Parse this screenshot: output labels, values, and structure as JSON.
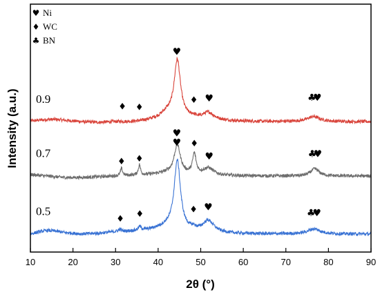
{
  "chart_data": {
    "type": "line",
    "xlabel": "2θ (°)",
    "ylabel": "Intensity (a.u.)",
    "xlim": [
      10,
      90
    ],
    "xticks": [
      10,
      20,
      30,
      40,
      50,
      60,
      70,
      80,
      90
    ],
    "y_ticks_shown": false,
    "legend": {
      "placement": "top-left",
      "entries": [
        {
          "symbol": "♥",
          "symbol_name": "heart-symbol",
          "label": "Ni"
        },
        {
          "symbol": "♦",
          "symbol_name": "diamond-symbol",
          "label": "WC"
        },
        {
          "symbol": "♣",
          "symbol_name": "club-symbol",
          "label": "BN"
        }
      ]
    },
    "series": [
      {
        "name": "0.9",
        "color": "#d9453c",
        "baseline": 1.55,
        "background_points": [
          [
            10,
            0.01
          ],
          [
            12,
            0.02
          ],
          [
            14,
            0.03
          ],
          [
            16,
            0.03
          ],
          [
            18,
            0.02
          ],
          [
            22,
            0.0
          ],
          [
            26,
            -0.01
          ],
          [
            30,
            0.0
          ],
          [
            34,
            0.0
          ],
          [
            36,
            0.01
          ],
          [
            38,
            0.03
          ],
          [
            40,
            0.06
          ],
          [
            42,
            0.12
          ]
        ],
        "peaks": [
          {
            "x": 44.5,
            "height": 0.78,
            "width": 0.9,
            "marker": "♥"
          },
          {
            "x": 51.8,
            "height": 0.1,
            "width": 1.6,
            "marker": "♥"
          },
          {
            "x": 48.3,
            "height": 0.02,
            "width": 0.4,
            "marker": "♦"
          },
          {
            "x": 76.5,
            "height": 0.07,
            "width": 1.8,
            "marker": "♥"
          },
          {
            "x": 31.5,
            "height": 0.0,
            "width": 0.3,
            "marker": "♦"
          },
          {
            "x": 35.6,
            "height": 0.0,
            "width": 0.3,
            "marker": "♦"
          }
        ],
        "markers": [
          {
            "symbol": "♦",
            "x": 31.6,
            "y": 1.72
          },
          {
            "symbol": "♦",
            "x": 35.6,
            "y": 1.71
          },
          {
            "symbol": "♥",
            "x": 44.4,
            "y": 2.47
          },
          {
            "symbol": "♦",
            "x": 48.4,
            "y": 1.81
          },
          {
            "symbol": "♥",
            "x": 52.0,
            "y": 1.83
          },
          {
            "symbol": "♣",
            "x": 76.1,
            "y": 1.84
          },
          {
            "symbol": "♥",
            "x": 77.4,
            "y": 1.84
          }
        ]
      },
      {
        "name": "0.7",
        "color": "#6d6d6d",
        "baseline": 0.8,
        "background_points": [
          [
            10,
            0.02
          ],
          [
            12,
            0.01
          ],
          [
            14,
            0.0
          ],
          [
            18,
            -0.02
          ],
          [
            22,
            -0.02
          ],
          [
            26,
            -0.01
          ],
          [
            30,
            0.0
          ],
          [
            34,
            0.01
          ],
          [
            38,
            0.02
          ],
          [
            42,
            0.04
          ]
        ],
        "peaks": [
          {
            "x": 44.5,
            "height": 0.4,
            "width": 0.9,
            "marker": "♥"
          },
          {
            "x": 48.5,
            "height": 0.28,
            "width": 0.5,
            "marker": "♦"
          },
          {
            "x": 51.8,
            "height": 0.1,
            "width": 1.5,
            "marker": "♥"
          },
          {
            "x": 31.4,
            "height": 0.1,
            "width": 0.3,
            "marker": "♦"
          },
          {
            "x": 35.6,
            "height": 0.14,
            "width": 0.3,
            "marker": "♦"
          },
          {
            "x": 76.8,
            "height": 0.1,
            "width": 1.2,
            "marker": "♥"
          }
        ],
        "markers": [
          {
            "symbol": "♦",
            "x": 31.4,
            "y": 0.96
          },
          {
            "symbol": "♦",
            "x": 35.6,
            "y": 1.0
          },
          {
            "symbol": "♥",
            "x": 44.4,
            "y": 1.35
          },
          {
            "symbol": "♦",
            "x": 48.5,
            "y": 1.21
          },
          {
            "symbol": "♥",
            "x": 52.0,
            "y": 1.03
          },
          {
            "symbol": "♣",
            "x": 76.2,
            "y": 1.06
          },
          {
            "symbol": "♥",
            "x": 77.5,
            "y": 1.06
          }
        ]
      },
      {
        "name": "0.5",
        "color": "#3a73d4",
        "baseline": 0.0,
        "background_points": [
          [
            10,
            0.0
          ],
          [
            12,
            0.03
          ],
          [
            14,
            0.05
          ],
          [
            16,
            0.04
          ],
          [
            18,
            0.02
          ],
          [
            22,
            0.0
          ],
          [
            26,
            0.01
          ],
          [
            30,
            0.03
          ],
          [
            34,
            0.04
          ],
          [
            38,
            0.06
          ],
          [
            42,
            0.1
          ]
        ],
        "peaks": [
          {
            "x": 44.5,
            "height": 0.95,
            "width": 0.9,
            "marker": "♥"
          },
          {
            "x": 51.8,
            "height": 0.16,
            "width": 1.6,
            "marker": "♥"
          },
          {
            "x": 31.0,
            "height": 0.03,
            "width": 0.4,
            "marker": "♦"
          },
          {
            "x": 35.7,
            "height": 0.05,
            "width": 0.4,
            "marker": "♦"
          },
          {
            "x": 48.3,
            "height": 0.03,
            "width": 0.5,
            "marker": "♦"
          },
          {
            "x": 76.6,
            "height": 0.07,
            "width": 1.8,
            "marker": "♥"
          }
        ],
        "markers": [
          {
            "symbol": "♦",
            "x": 31.1,
            "y": 0.17
          },
          {
            "symbol": "♦",
            "x": 35.7,
            "y": 0.24
          },
          {
            "symbol": "♥",
            "x": 44.4,
            "y": 1.22
          },
          {
            "symbol": "♦",
            "x": 48.3,
            "y": 0.3
          },
          {
            "symbol": "♥",
            "x": 51.8,
            "y": 0.33
          },
          {
            "symbol": "♣",
            "x": 75.9,
            "y": 0.25
          },
          {
            "symbol": "♥",
            "x": 77.3,
            "y": 0.25
          }
        ]
      }
    ]
  }
}
